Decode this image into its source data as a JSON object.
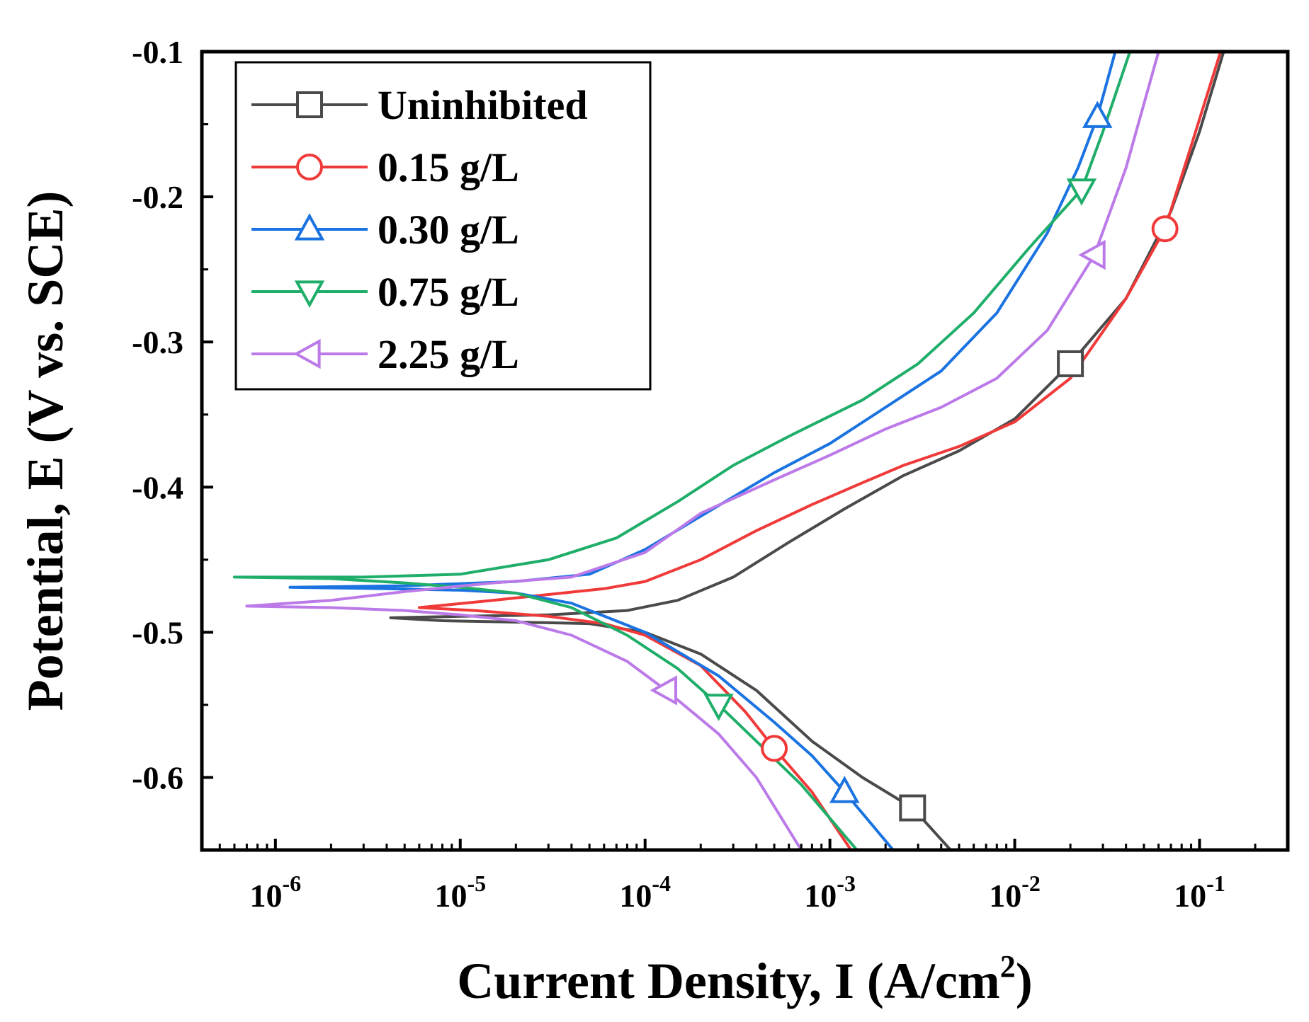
{
  "chart_data": {
    "type": "line",
    "title": "",
    "xlabel": "Current Density, I (A/cm",
    "xlabel_sup": "2",
    "xlabel_suffix": ")",
    "ylabel": "Potential, E (V vs. SCE)",
    "x_scale": "log",
    "xlim": [
      4e-07,
      0.3
    ],
    "ylim": [
      -0.65,
      -0.1
    ],
    "x_ticks": [
      {
        "value": 1e-06,
        "base": "10",
        "exp": "-6"
      },
      {
        "value": 1e-05,
        "base": "10",
        "exp": "-5"
      },
      {
        "value": 0.0001,
        "base": "10",
        "exp": "-4"
      },
      {
        "value": 0.001,
        "base": "10",
        "exp": "-3"
      },
      {
        "value": 0.01,
        "base": "10",
        "exp": "-2"
      },
      {
        "value": 0.1,
        "base": "10",
        "exp": "-1"
      }
    ],
    "y_ticks": [
      {
        "value": -0.1,
        "label": "-0.1"
      },
      {
        "value": -0.2,
        "label": "-0.2"
      },
      {
        "value": -0.3,
        "label": "-0.3"
      },
      {
        "value": -0.4,
        "label": "-0.4"
      },
      {
        "value": -0.5,
        "label": "-0.5"
      },
      {
        "value": -0.6,
        "label": "-0.6"
      }
    ],
    "legend_position": "top-left",
    "grid": false,
    "series": [
      {
        "name": "Uninhibited",
        "color": "#4a4a4a",
        "marker": "square",
        "markers": [
          [
            0.0028,
            -0.621
          ],
          [
            0.02,
            -0.315
          ]
        ],
        "cathodic": [
          [
            4.2e-06,
            -0.49
          ],
          [
            8e-06,
            -0.492
          ],
          [
            2e-05,
            -0.493
          ],
          [
            5e-05,
            -0.494
          ],
          [
            0.0001,
            -0.5
          ],
          [
            0.0002,
            -0.515
          ],
          [
            0.0004,
            -0.54
          ],
          [
            0.0008,
            -0.575
          ],
          [
            0.0015,
            -0.6
          ],
          [
            0.0028,
            -0.621
          ],
          [
            0.0045,
            -0.65
          ]
        ],
        "anodic": [
          [
            4.2e-06,
            -0.49
          ],
          [
            1e-05,
            -0.489
          ],
          [
            3e-05,
            -0.488
          ],
          [
            8e-05,
            -0.485
          ],
          [
            0.00015,
            -0.478
          ],
          [
            0.0003,
            -0.462
          ],
          [
            0.0006,
            -0.438
          ],
          [
            0.0012,
            -0.415
          ],
          [
            0.0025,
            -0.392
          ],
          [
            0.005,
            -0.375
          ],
          [
            0.01,
            -0.353
          ],
          [
            0.02,
            -0.315
          ],
          [
            0.04,
            -0.27
          ],
          [
            0.07,
            -0.21
          ],
          [
            0.1,
            -0.155
          ],
          [
            0.135,
            -0.1
          ]
        ]
      },
      {
        "name": "0.15 g/L",
        "color": "#f03a3a",
        "marker": "circle",
        "markers": [
          [
            0.0005,
            -0.58
          ],
          [
            0.065,
            -0.222
          ]
        ],
        "cathodic": [
          [
            6e-06,
            -0.483
          ],
          [
            1.2e-05,
            -0.485
          ],
          [
            3e-05,
            -0.489
          ],
          [
            6e-05,
            -0.494
          ],
          [
            0.0001,
            -0.502
          ],
          [
            0.0002,
            -0.523
          ],
          [
            0.00035,
            -0.555
          ],
          [
            0.0005,
            -0.58
          ],
          [
            0.0008,
            -0.61
          ],
          [
            0.0013,
            -0.65
          ]
        ],
        "anodic": [
          [
            6e-06,
            -0.483
          ],
          [
            1.5e-05,
            -0.478
          ],
          [
            3e-05,
            -0.474
          ],
          [
            6e-05,
            -0.47
          ],
          [
            0.0001,
            -0.465
          ],
          [
            0.0002,
            -0.45
          ],
          [
            0.0004,
            -0.43
          ],
          [
            0.0008,
            -0.412
          ],
          [
            0.0015,
            -0.397
          ],
          [
            0.0025,
            -0.385
          ],
          [
            0.005,
            -0.372
          ],
          [
            0.01,
            -0.355
          ],
          [
            0.02,
            -0.325
          ],
          [
            0.04,
            -0.27
          ],
          [
            0.065,
            -0.222
          ],
          [
            0.09,
            -0.165
          ],
          [
            0.13,
            -0.1
          ]
        ]
      },
      {
        "name": "0.30 g/L",
        "color": "#1a73e0",
        "marker": "triangle-up",
        "markers": [
          [
            0.0012,
            -0.61
          ],
          [
            0.028,
            -0.145
          ]
        ],
        "cathodic": [
          [
            1.2e-06,
            -0.469
          ],
          [
            4e-06,
            -0.47
          ],
          [
            1e-05,
            -0.471
          ],
          [
            2e-05,
            -0.473
          ],
          [
            4e-05,
            -0.48
          ],
          [
            0.0001,
            -0.5
          ],
          [
            0.00025,
            -0.53
          ],
          [
            0.0005,
            -0.562
          ],
          [
            0.0008,
            -0.585
          ],
          [
            0.0012,
            -0.61
          ],
          [
            0.0022,
            -0.65
          ]
        ],
        "anodic": [
          [
            1.2e-06,
            -0.469
          ],
          [
            5e-06,
            -0.468
          ],
          [
            2e-05,
            -0.465
          ],
          [
            5e-05,
            -0.46
          ],
          [
            0.0001,
            -0.443
          ],
          [
            0.0002,
            -0.42
          ],
          [
            0.0005,
            -0.39
          ],
          [
            0.001,
            -0.37
          ],
          [
            0.002,
            -0.345
          ],
          [
            0.004,
            -0.32
          ],
          [
            0.008,
            -0.28
          ],
          [
            0.015,
            -0.225
          ],
          [
            0.022,
            -0.18
          ],
          [
            0.028,
            -0.145
          ],
          [
            0.035,
            -0.1
          ]
        ]
      },
      {
        "name": "0.75 g/L",
        "color": "#1fae6a",
        "marker": "triangle-down",
        "markers": [
          [
            0.00025,
            -0.55
          ],
          [
            0.023,
            -0.195
          ]
        ],
        "cathodic": [
          [
            6e-07,
            -0.462
          ],
          [
            2e-06,
            -0.463
          ],
          [
            5e-06,
            -0.466
          ],
          [
            1e-05,
            -0.469
          ],
          [
            2e-05,
            -0.473
          ],
          [
            4e-05,
            -0.483
          ],
          [
            8e-05,
            -0.502
          ],
          [
            0.00015,
            -0.525
          ],
          [
            0.00025,
            -0.55
          ],
          [
            0.0004,
            -0.575
          ],
          [
            0.0007,
            -0.605
          ],
          [
            0.0014,
            -0.65
          ]
        ],
        "anodic": [
          [
            6e-07,
            -0.462
          ],
          [
            3e-06,
            -0.462
          ],
          [
            1e-05,
            -0.46
          ],
          [
            3e-05,
            -0.45
          ],
          [
            7e-05,
            -0.435
          ],
          [
            0.00015,
            -0.41
          ],
          [
            0.0003,
            -0.385
          ],
          [
            0.0006,
            -0.365
          ],
          [
            0.0015,
            -0.34
          ],
          [
            0.003,
            -0.315
          ],
          [
            0.006,
            -0.28
          ],
          [
            0.012,
            -0.235
          ],
          [
            0.023,
            -0.195
          ],
          [
            0.03,
            -0.155
          ],
          [
            0.042,
            -0.1
          ]
        ]
      },
      {
        "name": "2.25 g/L",
        "color": "#bb7ae8",
        "marker": "triangle-left",
        "markers": [
          [
            0.00013,
            -0.54
          ],
          [
            0.027,
            -0.24
          ]
        ],
        "cathodic": [
          [
            7e-07,
            -0.482
          ],
          [
            2e-06,
            -0.483
          ],
          [
            5e-06,
            -0.485
          ],
          [
            1e-05,
            -0.488
          ],
          [
            2e-05,
            -0.492
          ],
          [
            4e-05,
            -0.502
          ],
          [
            8e-05,
            -0.52
          ],
          [
            0.00013,
            -0.54
          ],
          [
            0.00025,
            -0.57
          ],
          [
            0.0004,
            -0.6
          ],
          [
            0.0007,
            -0.65
          ]
        ],
        "anodic": [
          [
            7e-07,
            -0.482
          ],
          [
            2e-06,
            -0.478
          ],
          [
            5e-06,
            -0.472
          ],
          [
            1.5e-05,
            -0.466
          ],
          [
            4e-05,
            -0.462
          ],
          [
            0.0001,
            -0.445
          ],
          [
            0.0002,
            -0.418
          ],
          [
            0.0005,
            -0.395
          ],
          [
            0.001,
            -0.378
          ],
          [
            0.002,
            -0.36
          ],
          [
            0.004,
            -0.345
          ],
          [
            0.008,
            -0.325
          ],
          [
            0.015,
            -0.292
          ],
          [
            0.027,
            -0.24
          ],
          [
            0.04,
            -0.18
          ],
          [
            0.06,
            -0.1
          ]
        ]
      }
    ]
  }
}
